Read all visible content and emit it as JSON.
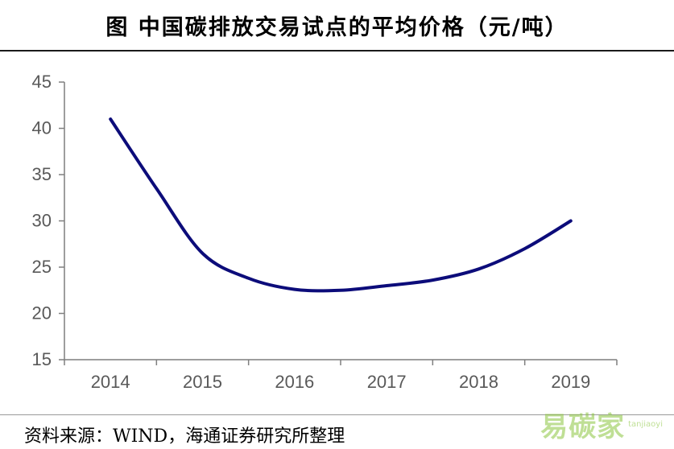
{
  "title": "图  中国碳排放交易试点的平均价格（元/吨）",
  "source": "资料来源：WIND，海通证券研究所整理",
  "watermark": {
    "text": "易碳家",
    "sub": "tanjiaoyi"
  },
  "colors": {
    "line": "#0c0c7a",
    "axis": "#7f7f7f",
    "text": "#595959"
  },
  "chart_data": {
    "type": "line",
    "title": "图  中国碳排放交易试点的平均价格（元/吨）",
    "xlabel": "",
    "ylabel": "",
    "categories": [
      "2014",
      "2015",
      "2016",
      "2017",
      "2018",
      "2019"
    ],
    "ylim": [
      15,
      45
    ],
    "yticks": [
      15,
      20,
      25,
      30,
      35,
      40,
      45
    ],
    "grid": false,
    "legend": "none",
    "series": [
      {
        "name": "",
        "x": [
          0,
          0.5,
          1,
          1.5,
          2,
          2.5,
          3,
          3.5,
          4,
          4.5,
          5
        ],
        "y": [
          41,
          33.5,
          26.5,
          23.8,
          22.6,
          22.5,
          23.0,
          23.6,
          24.8,
          27.0,
          30.0
        ]
      }
    ]
  }
}
